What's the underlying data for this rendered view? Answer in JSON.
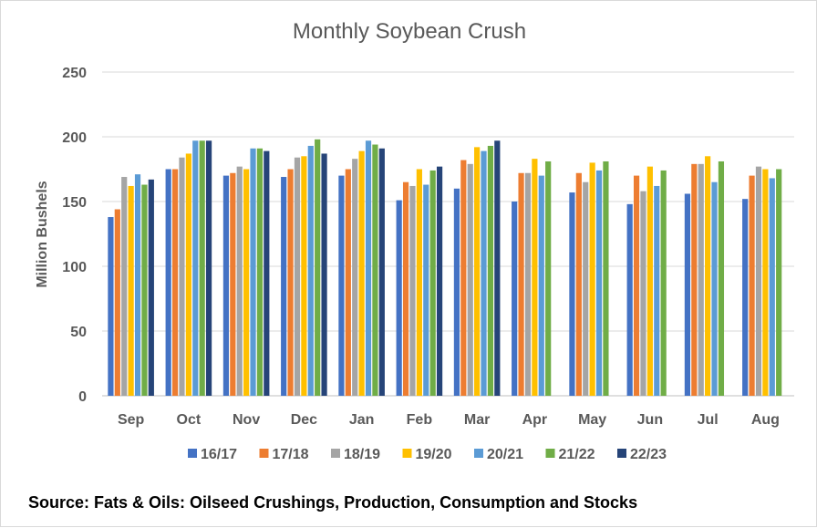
{
  "chart_data": {
    "type": "bar",
    "title": "Monthly Soybean Crush",
    "xlabel": "",
    "ylabel": "Million Bushels",
    "ylim": [
      0,
      250
    ],
    "yticks": [
      "0",
      "50",
      "100",
      "150",
      "200",
      "250"
    ],
    "grid": true,
    "legend_position": "bottom",
    "categories": [
      "Sep",
      "Oct",
      "Nov",
      "Dec",
      "Jan",
      "Feb",
      "Mar",
      "Apr",
      "May",
      "Jun",
      "Jul",
      "Aug"
    ],
    "series": [
      {
        "name": "16/17",
        "color": "#4472C4",
        "values": [
          138,
          175,
          170,
          169,
          170,
          151,
          160,
          150,
          157,
          148,
          156,
          152
        ]
      },
      {
        "name": "17/18",
        "color": "#ED7D31",
        "values": [
          144,
          175,
          172,
          175,
          175,
          165,
          182,
          172,
          172,
          170,
          179,
          170
        ]
      },
      {
        "name": "18/19",
        "color": "#A5A5A5",
        "values": [
          169,
          184,
          177,
          184,
          183,
          162,
          179,
          172,
          165,
          158,
          179,
          177
        ]
      },
      {
        "name": "19/20",
        "color": "#FFC000",
        "values": [
          162,
          187,
          175,
          185,
          189,
          175,
          192,
          183,
          180,
          177,
          185,
          175
        ]
      },
      {
        "name": "20/21",
        "color": "#5B9BD5",
        "values": [
          171,
          197,
          191,
          193,
          197,
          163,
          189,
          170,
          174,
          162,
          165,
          168
        ]
      },
      {
        "name": "21/22",
        "color": "#70AD47",
        "values": [
          163,
          197,
          191,
          198,
          194,
          174,
          193,
          181,
          181,
          174,
          181,
          175
        ]
      },
      {
        "name": "22/23",
        "color": "#264478",
        "values": [
          167,
          197,
          189,
          187,
          191,
          177,
          197,
          null,
          null,
          null,
          null,
          null
        ]
      }
    ]
  },
  "source": "Source: Fats & Oils: Oilseed Crushings, Production, Consumption and Stocks"
}
